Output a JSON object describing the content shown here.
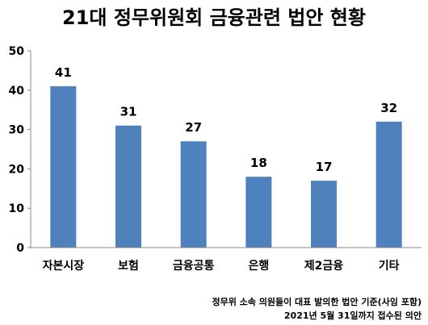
{
  "chart_data": {
    "type": "bar",
    "title": "21대 정무위원회 금융관련 법안 현황",
    "categories": [
      "자본시장",
      "보험",
      "금융공통",
      "은행",
      "제2금융",
      "기타"
    ],
    "values": [
      41,
      31,
      27,
      18,
      17,
      32
    ],
    "ylim": [
      0,
      50
    ],
    "yticks": [
      0,
      10,
      20,
      30,
      40,
      50
    ],
    "xlabel": "",
    "ylabel": "",
    "grid": false,
    "legend": "none",
    "bar_color": "#4F81BD",
    "notes": [
      "정무위 소속 의원들이 대표 발의한 법안 기준(사임 포함)",
      "2021년 5월 31일까지 접수된 의안"
    ]
  }
}
